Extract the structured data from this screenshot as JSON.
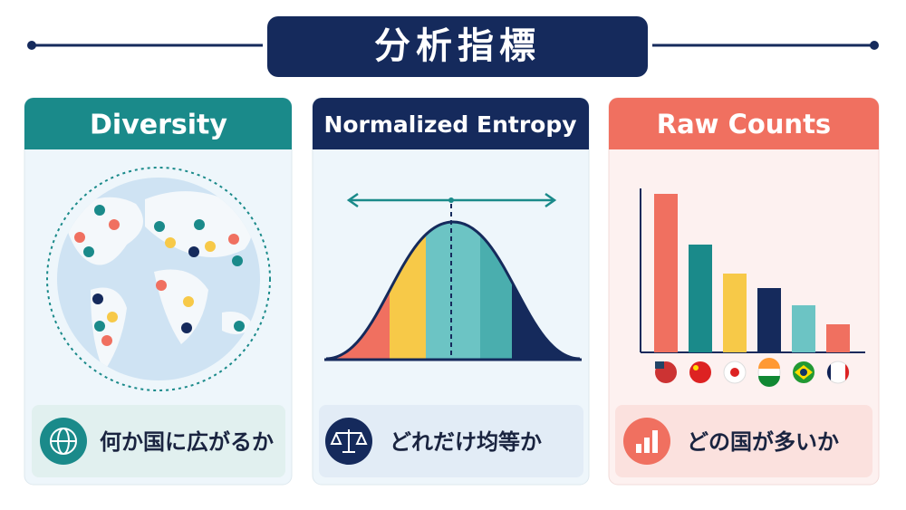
{
  "header": {
    "title": "分析指標"
  },
  "cards": [
    {
      "title": "Diversity",
      "caption": "何か国に広がるか"
    },
    {
      "title": "Normalized Entropy",
      "caption": "どれだけ均等か"
    },
    {
      "title": "Raw Counts",
      "caption": "どの国が多いか"
    }
  ]
}
